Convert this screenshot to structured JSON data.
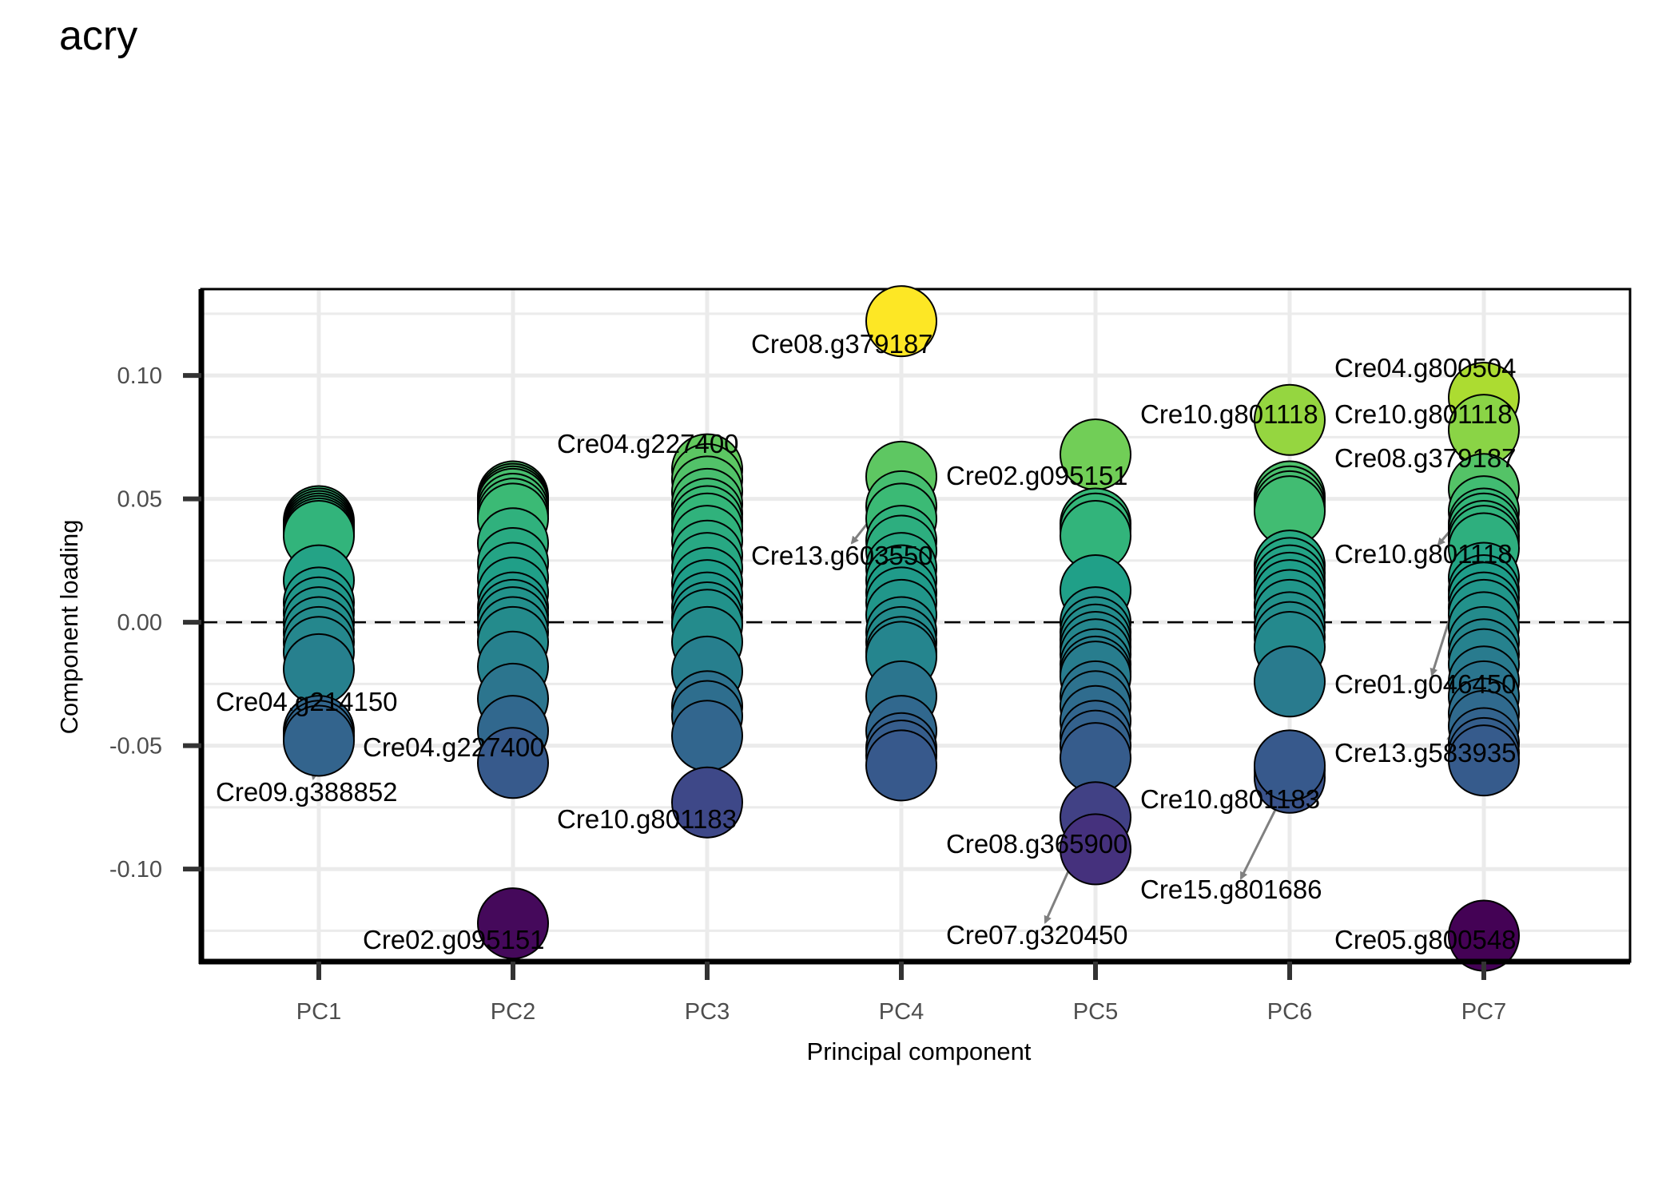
{
  "chart_data": {
    "type": "scatter",
    "title": "acry",
    "xlabel": "Principal component",
    "ylabel": "Component loading",
    "categories": [
      "PC1",
      "PC2",
      "PC3",
      "PC4",
      "PC5",
      "PC6",
      "PC7"
    ],
    "ylim": [
      -0.1375,
      0.135
    ],
    "yticks": [
      -0.1,
      -0.05,
      0.0,
      0.05,
      0.1
    ],
    "ytick_labels": [
      "-0.10",
      "-0.05",
      "0.00",
      "0.05",
      "0.10"
    ],
    "reference_line": {
      "y": 0,
      "style": "dashed"
    },
    "grid": true,
    "color_scale": "viridis",
    "color_range": [
      -0.1275,
      0.122
    ],
    "series": [
      {
        "category": "PC1",
        "values": [
          0.041,
          0.04,
          0.039,
          0.038,
          0.037,
          0.036,
          0.035,
          0.017,
          0.008,
          0.004,
          0.0,
          -0.004,
          -0.008,
          -0.012,
          -0.019,
          -0.044,
          -0.046,
          -0.048
        ]
      },
      {
        "category": "PC2",
        "values": [
          0.051,
          0.05,
          0.049,
          0.048,
          0.046,
          0.044,
          0.042,
          0.032,
          0.024,
          0.018,
          0.012,
          0.006,
          0.003,
          0.0,
          -0.004,
          -0.008,
          -0.018,
          -0.031,
          -0.044,
          -0.057,
          -0.122
        ]
      },
      {
        "category": "PC3",
        "values": [
          0.062,
          0.058,
          0.053,
          0.048,
          0.044,
          0.041,
          0.038,
          0.033,
          0.027,
          0.022,
          0.016,
          0.011,
          0.006,
          0.002,
          -0.001,
          -0.008,
          -0.02,
          -0.034,
          -0.038,
          -0.046,
          -0.073
        ]
      },
      {
        "category": "PC4",
        "values": [
          0.122,
          0.059,
          0.047,
          0.042,
          0.033,
          0.029,
          0.022,
          0.017,
          0.012,
          0.008,
          0.003,
          -0.004,
          -0.008,
          -0.012,
          -0.014,
          -0.03,
          -0.044,
          -0.051,
          -0.054,
          -0.058
        ]
      },
      {
        "category": "PC5",
        "values": [
          0.068,
          0.04,
          0.038,
          0.035,
          0.013,
          0.0,
          -0.004,
          -0.007,
          -0.01,
          -0.013,
          -0.017,
          -0.02,
          -0.022,
          -0.03,
          -0.034,
          -0.04,
          -0.046,
          -0.05,
          -0.055,
          -0.079,
          -0.092
        ]
      },
      {
        "category": "PC6",
        "values": [
          0.082,
          0.051,
          0.049,
          0.047,
          0.045,
          0.023,
          0.02,
          0.017,
          0.014,
          0.011,
          0.007,
          0.003,
          -0.002,
          -0.006,
          -0.01,
          -0.024,
          -0.06,
          -0.063,
          -0.058
        ]
      },
      {
        "category": "PC7",
        "values": [
          0.091,
          0.078,
          0.054,
          0.045,
          0.04,
          0.038,
          0.035,
          0.033,
          0.03,
          0.018,
          0.013,
          0.01,
          0.006,
          0.003,
          -0.002,
          -0.008,
          -0.013,
          -0.017,
          -0.024,
          -0.03,
          -0.037,
          -0.042,
          -0.049,
          -0.053,
          -0.056,
          -0.127
        ]
      }
    ],
    "annotations": [
      {
        "category": "PC1",
        "label": "Cre04.g214150",
        "value": -0.045
      },
      {
        "category": "PC1",
        "label": "Cre09.g388852",
        "value": -0.048
      },
      {
        "category": "PC2",
        "label": "Cre04.g227400",
        "value": -0.056
      },
      {
        "category": "PC2",
        "label": "Cre02.g095151",
        "value": -0.122
      },
      {
        "category": "PC3",
        "label": "Cre04.g227400",
        "value": 0.058
      },
      {
        "category": "PC3",
        "label": "Cre10.g801183",
        "value": -0.073
      },
      {
        "category": "PC4",
        "label": "Cre08.g379187",
        "value": 0.122
      },
      {
        "category": "PC4",
        "label": "Cre02.g095151",
        "value": 0.059
      },
      {
        "category": "PC4",
        "label": "Cre13.g603550",
        "value": 0.059
      },
      {
        "category": "PC5",
        "label": "Cre10.g801118",
        "value": 0.068
      },
      {
        "category": "PC5",
        "label": "Cre10.g801183",
        "value": -0.079
      },
      {
        "category": "PC5",
        "label": "Cre08.g365900",
        "value": -0.079
      },
      {
        "category": "PC5",
        "label": "Cre07.g320450",
        "value": -0.092
      },
      {
        "category": "PC6",
        "label": "Cre10.g801118",
        "value": 0.082
      },
      {
        "category": "PC6",
        "label": "Cre15.g801686",
        "value": -0.063
      },
      {
        "category": "PC7",
        "label": "Cre04.g800504",
        "value": 0.078
      },
      {
        "category": "PC7",
        "label": "Cre08.g379187",
        "value": 0.054
      },
      {
        "category": "PC7",
        "label": "Cre10.g801118",
        "value": 0.045
      },
      {
        "category": "PC7",
        "label": "Cre01.g046450",
        "value": 0.045
      },
      {
        "category": "PC7",
        "label": "Cre13.g583935",
        "value": -0.042
      },
      {
        "category": "PC7",
        "label": "Cre05.g800548",
        "value": -0.127
      }
    ]
  }
}
